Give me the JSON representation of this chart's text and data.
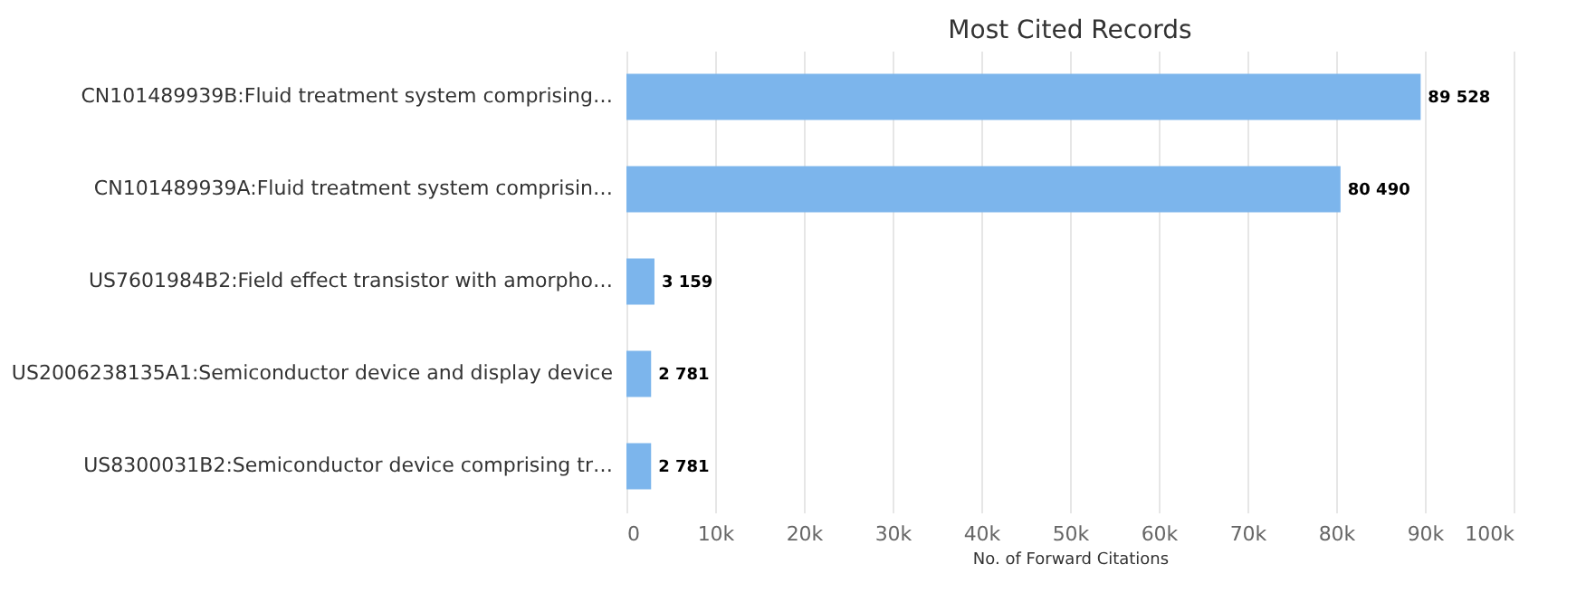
{
  "chart_data": {
    "type": "bar",
    "orientation": "horizontal",
    "title": "Most Cited Records",
    "xlabel": "No. of Forward Citations",
    "categories": [
      "CN101489939B:Fluid treatment system comprising…",
      "CN101489939A:Fluid treatment system comprisin…",
      "US7601984B2:Field effect transistor with amorpho…",
      "US2006238135A1:Semiconductor device and display device",
      "US8300031B2:Semiconductor device comprising tr…"
    ],
    "values": [
      89528,
      80490,
      3159,
      2781,
      2781
    ],
    "value_labels": [
      "89 528",
      "80 490",
      "3 159",
      "2 781",
      "2 781"
    ],
    "color": "#7cb5ec",
    "xlim": [
      0,
      100000
    ],
    "xticks": [
      0,
      {
        "value": 10000,
        "label": "10k"
      },
      {
        "value": 20000,
        "label": "20k"
      },
      {
        "value": 30000,
        "label": "30k"
      },
      {
        "value": 40000,
        "label": "40k"
      },
      {
        "value": 50000,
        "label": "50k"
      },
      {
        "value": 60000,
        "label": "60k"
      },
      {
        "value": 70000,
        "label": "70k"
      },
      {
        "value": 80000,
        "label": "80k"
      },
      {
        "value": 90000,
        "label": "90k"
      },
      {
        "value": 100000,
        "label": "100k"
      }
    ],
    "grid": "x"
  }
}
